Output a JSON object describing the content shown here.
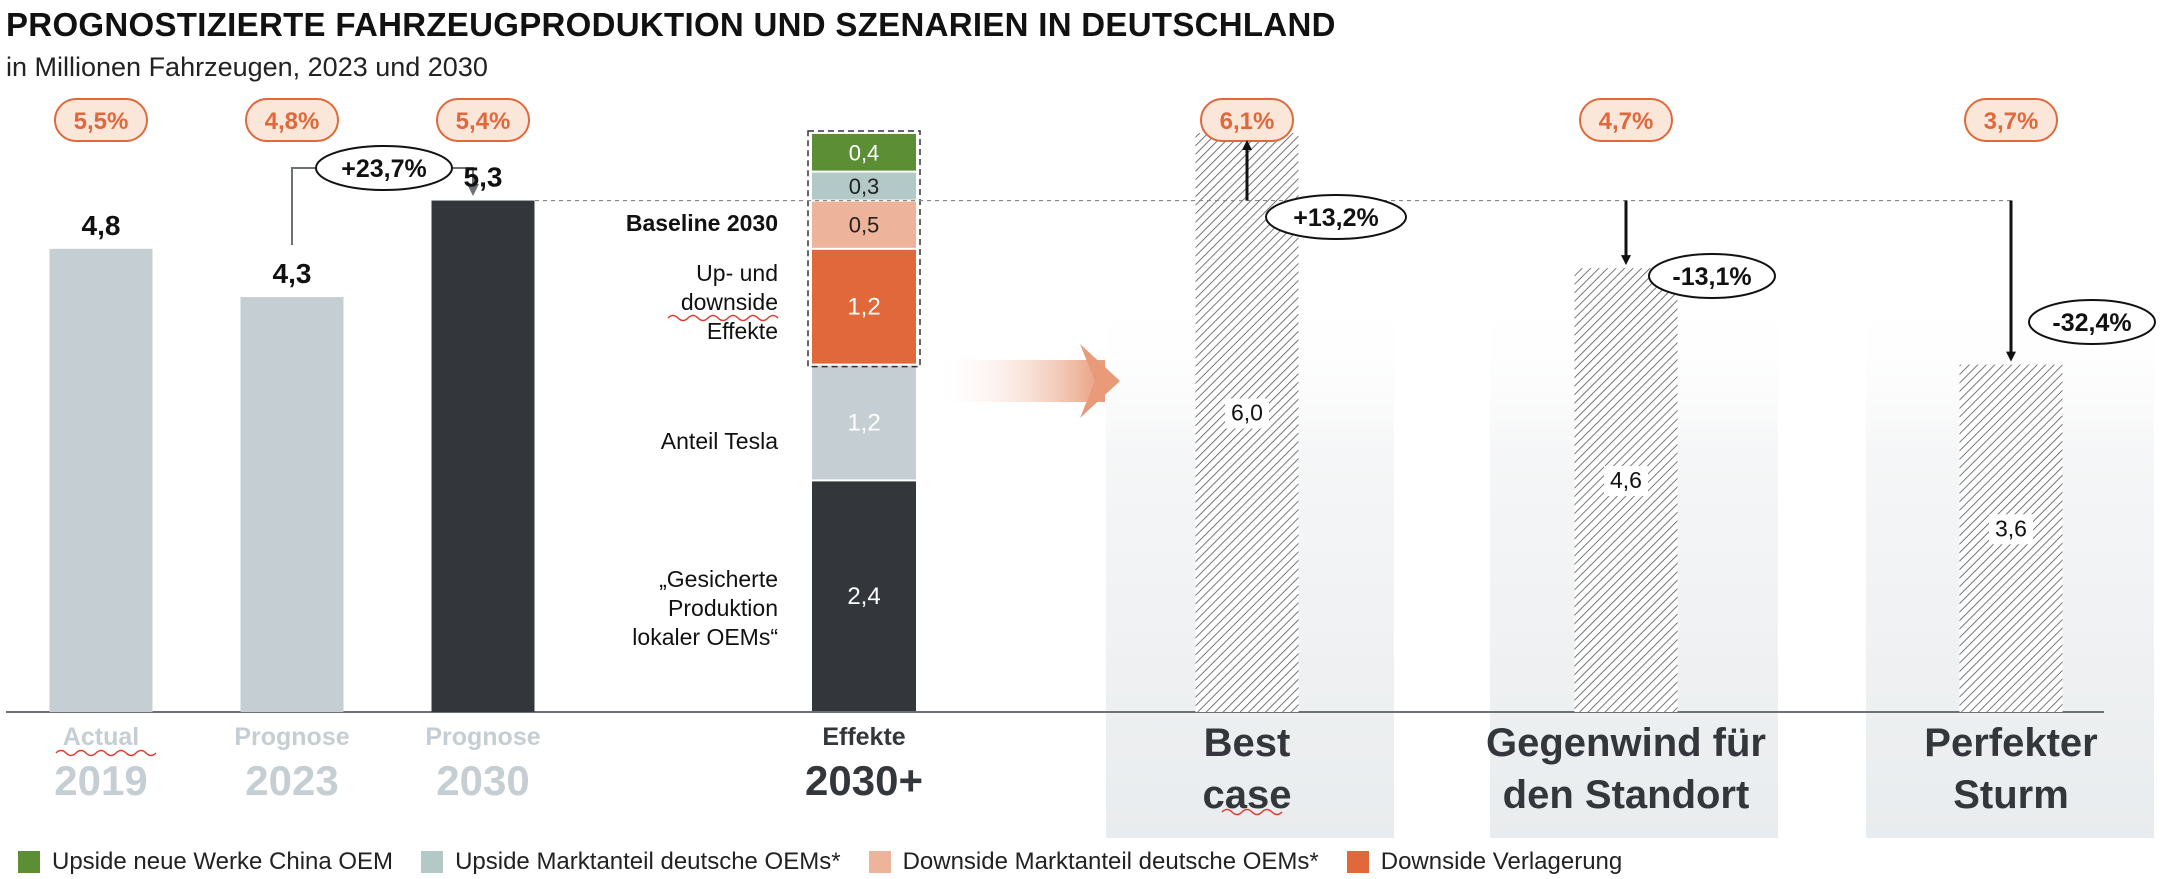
{
  "header": {
    "title": "PROGNOSTIZIERTE FAHRZEUGPRODUKTION UND SZENARIEN IN DEUTSCHLAND",
    "subtitle": "in Millionen Fahrzeugen, 2023 und 2030"
  },
  "colors": {
    "bar_light": "#c5ced3",
    "bar_dark": "#33373b",
    "green": "#5c8f35",
    "teal": "#b3c9c8",
    "peach": "#eeb39b",
    "orange": "#e0683a",
    "pct_badge_fill": "#fbe6da",
    "pct_badge_stroke": "#e0683a",
    "pct_badge_text": "#e0683a",
    "panel_bg": "#eef0f2"
  },
  "chart_data": {
    "type": "bar",
    "unit": "Mio. Fahrzeuge",
    "main_bars": [
      {
        "label_top": "Actual",
        "label_bottom": "2019",
        "value": 4.8,
        "value_label": "4,8",
        "share_label": "5,5%",
        "color": "#c5ced3"
      },
      {
        "label_top": "Prognose",
        "label_bottom": "2023",
        "value": 4.3,
        "value_label": "4,3",
        "share_label": "4,8%",
        "color": "#c5ced3"
      },
      {
        "label_top": "Prognose",
        "label_bottom": "2030",
        "value": 5.3,
        "value_label": "5,3",
        "share_label": "5,4%",
        "color": "#33373b"
      }
    ],
    "growth_annotation": "+23,7%",
    "effects": {
      "label_top": "Effekte",
      "label_bottom": "2030+",
      "baseline_label": "Baseline 2030",
      "segments": [
        {
          "name": "„Gesicherte Produktion lokaler OEMs“",
          "value": 2.4,
          "value_label": "2,4",
          "color": "#33373b"
        },
        {
          "name": "Anteil Tesla",
          "value": 1.2,
          "value_label": "1,2",
          "color": "#c5ced3"
        },
        {
          "name": "Downside Verlagerung",
          "value": 1.2,
          "value_label": "1,2",
          "color": "#e0683a"
        },
        {
          "name": "Downside Marktanteil deutsche OEMs*",
          "value": 0.5,
          "value_label": "0,5",
          "color": "#eeb39b"
        },
        {
          "name": "Upside Marktanteil deutsche OEMs*",
          "value": 0.3,
          "value_label": "0,3",
          "color": "#b3c9c8"
        },
        {
          "name": "Upside neue Werke China OEM",
          "value": 0.4,
          "value_label": "0,4",
          "color": "#5c8f35"
        }
      ],
      "segment_labels": {
        "tesla": "Anteil Tesla",
        "updown": [
          "Up- und",
          "downside",
          "Effekte"
        ],
        "local": [
          "„Gesicherte",
          "Produktion",
          "lokaler OEMs“"
        ]
      }
    },
    "scenarios": [
      {
        "name_lines": [
          "Best",
          "case"
        ],
        "value": 6.0,
        "value_label": "6,0",
        "change_label": "+13,2%",
        "share_label": "6,1%"
      },
      {
        "name_lines": [
          "Gegenwind für",
          "den Standort"
        ],
        "value": 4.6,
        "value_label": "4,6",
        "change_label": "-13,1%",
        "share_label": "4,7%"
      },
      {
        "name_lines": [
          "Perfekter",
          "Sturm"
        ],
        "value": 3.6,
        "value_label": "3,6",
        "change_label": "-32,4%",
        "share_label": "3,7%"
      }
    ],
    "ylim": [
      0,
      6.2
    ],
    "baseline_value": 5.3
  },
  "legend": [
    {
      "label": "Upside neue Werke China OEM",
      "color": "#5c8f35"
    },
    {
      "label": "Upside Marktanteil deutsche OEMs*",
      "color": "#b3c9c8"
    },
    {
      "label": "Downside Marktanteil deutsche OEMs*",
      "color": "#eeb39b"
    },
    {
      "label": "Downside Verlagerung",
      "color": "#e0683a"
    }
  ]
}
